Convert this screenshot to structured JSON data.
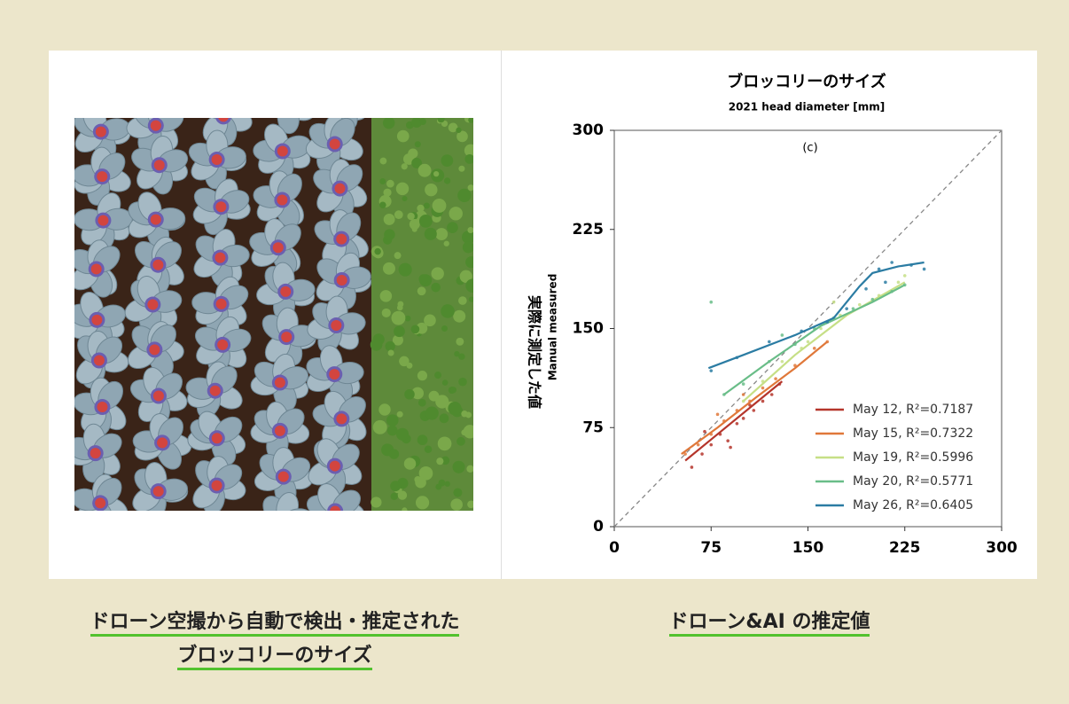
{
  "captions": {
    "left": [
      "ドローン空撮から自動で検出・推定された",
      "ブロッコリーのサイズ"
    ],
    "right": "ドローン&AI の推定値"
  },
  "chart_data": {
    "type": "scatter",
    "title": "ブロッコリーのサイズ",
    "subtitle": "2021 head diameter [mm]",
    "annotation": "(c)",
    "y_label": "実際に測定した値",
    "y_label_en": "Manual measured",
    "xlim": [
      0,
      300
    ],
    "ylim": [
      0,
      300
    ],
    "xticks": [
      0,
      75,
      150,
      225,
      300
    ],
    "yticks": [
      0,
      75,
      150,
      225,
      300
    ],
    "legend": "lower right",
    "series": [
      {
        "name": "May 12, R²=0.7187",
        "color": "#b5352b",
        "x": [
          60,
          68,
          75,
          82,
          88,
          95,
          100,
          108,
          115,
          122,
          128,
          70,
          90,
          105
        ],
        "values": [
          45,
          55,
          62,
          70,
          65,
          78,
          82,
          88,
          95,
          100,
          108,
          72,
          60,
          92
        ],
        "fit_x": [
          55,
          80,
          105,
          130
        ],
        "fit_values": [
          50,
          70,
          90,
          110
        ]
      },
      {
        "name": "May 15, R²=0.7322",
        "color": "#e0783a",
        "x": [
          55,
          65,
          75,
          85,
          95,
          105,
          115,
          125,
          140,
          155,
          165,
          80,
          100
        ],
        "values": [
          55,
          62,
          70,
          80,
          88,
          95,
          105,
          112,
          122,
          135,
          140,
          85,
          100
        ],
        "fit_x": [
          52,
          80,
          110,
          140,
          165
        ],
        "fit_values": [
          55,
          75,
          98,
          120,
          140
        ]
      },
      {
        "name": "May 19, R²=0.5996",
        "color": "#c6df86",
        "x": [
          100,
          115,
          130,
          145,
          160,
          175,
          190,
          205,
          220,
          225,
          150,
          170
        ],
        "values": [
          95,
          110,
          125,
          135,
          150,
          160,
          168,
          175,
          185,
          190,
          140,
          170
        ],
        "fit_x": [
          100,
          140,
          180,
          225
        ],
        "fit_values": [
          95,
          130,
          160,
          185
        ]
      },
      {
        "name": "May 20, R²=0.5771",
        "color": "#69bd88",
        "x": [
          85,
          100,
          120,
          140,
          155,
          170,
          185,
          200,
          215,
          225,
          75,
          130
        ],
        "values": [
          100,
          108,
          125,
          138,
          150,
          158,
          165,
          172,
          178,
          183,
          170,
          145
        ],
        "fit_x": [
          85,
          120,
          160,
          200,
          225
        ],
        "fit_values": [
          100,
          125,
          152,
          170,
          183
        ]
      },
      {
        "name": "May 26, R²=0.6405",
        "color": "#2b7ca3",
        "x": [
          75,
          95,
          120,
          145,
          165,
          180,
          195,
          205,
          215,
          230,
          240,
          210
        ],
        "values": [
          118,
          128,
          140,
          148,
          155,
          165,
          180,
          195,
          200,
          198,
          195,
          185
        ],
        "fit_x": [
          73,
          100,
          140,
          170,
          190,
          200,
          220,
          240
        ],
        "fit_values": [
          120,
          130,
          145,
          158,
          182,
          192,
          197,
          200
        ]
      }
    ]
  }
}
